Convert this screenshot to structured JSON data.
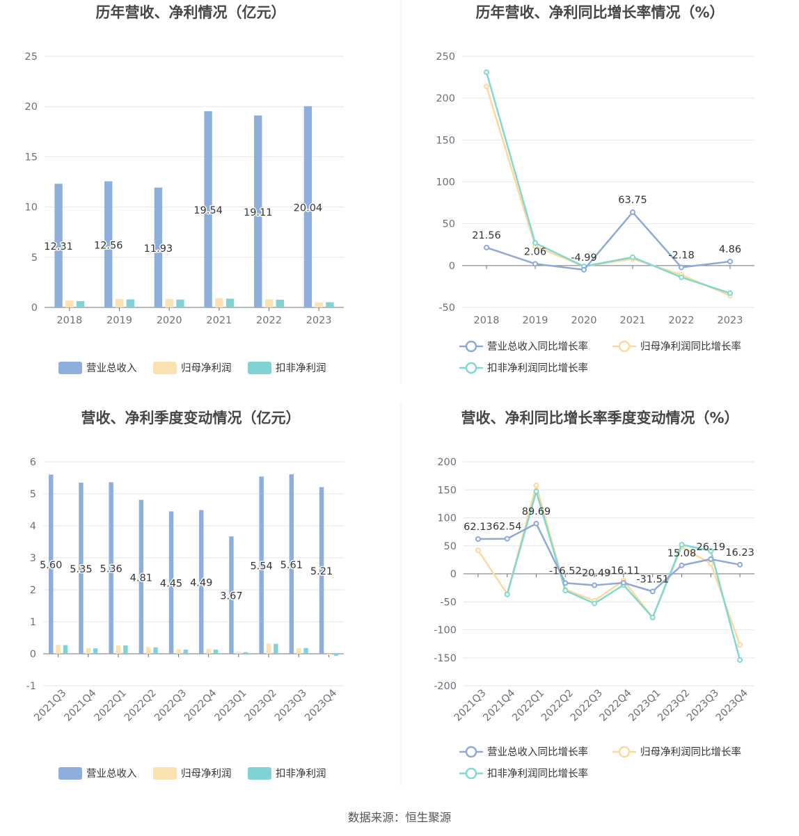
{
  "colors": {
    "revenue": "#8eaedc",
    "net_profit": "#fde2b1",
    "deducted_profit": "#7fd3d3",
    "revenue_line": "#8ea9d8",
    "net_profit_line": "#fed89c",
    "deducted_profit_line": "#80d8d2",
    "grid": "#e3e6ee",
    "axis": "#6e7079",
    "title": "#464646"
  },
  "source_text": "数据来源：恒生聚源",
  "chart_data": [
    {
      "id": "annual-revenue-profit",
      "type": "bar",
      "title": "历年营收、净利情况（亿元）",
      "categories": [
        "2018",
        "2019",
        "2020",
        "2021",
        "2022",
        "2023"
      ],
      "series": [
        {
          "name": "营业总收入",
          "values": [
            12.31,
            12.56,
            11.93,
            19.54,
            19.11,
            20.04
          ]
        },
        {
          "name": "归母净利润",
          "values": [
            0.68,
            0.84,
            0.84,
            0.91,
            0.81,
            0.51
          ]
        },
        {
          "name": "扣非净利润",
          "values": [
            0.63,
            0.8,
            0.78,
            0.87,
            0.77,
            0.52
          ]
        }
      ],
      "data_labels": [
        "12.31",
        "12.56",
        "11.93",
        "19.54",
        "19.11",
        "20.04"
      ],
      "ylim": [
        0,
        25
      ],
      "yticks": [
        0,
        5,
        10,
        15,
        20,
        25
      ]
    },
    {
      "id": "annual-growth-rate",
      "type": "line",
      "title": "历年营收、净利同比增长率情况（%）",
      "categories": [
        "2018",
        "2019",
        "2020",
        "2021",
        "2022",
        "2023"
      ],
      "series": [
        {
          "name": "营业总收入同比增长率",
          "values": [
            21.56,
            2.06,
            -4.99,
            63.75,
            -2.18,
            4.86
          ]
        },
        {
          "name": "归母净利润同比增长率",
          "values": [
            214,
            23,
            -1,
            8,
            -11,
            -36
          ]
        },
        {
          "name": "扣非净利润同比增长率",
          "values": [
            231,
            27,
            -1,
            10,
            -14,
            -33
          ]
        }
      ],
      "data_labels": [
        "21.56",
        "2.06",
        "-4.99",
        "63.75",
        "-2.18",
        "4.86"
      ],
      "ylim": [
        -50,
        250
      ],
      "yticks": [
        -50,
        0,
        50,
        100,
        150,
        200,
        250
      ]
    },
    {
      "id": "quarterly-revenue-profit",
      "type": "bar",
      "title": "营收、净利季度变动情况（亿元）",
      "categories": [
        "2021Q3",
        "2021Q4",
        "2022Q1",
        "2022Q2",
        "2022Q3",
        "2022Q4",
        "2023Q1",
        "2023Q2",
        "2023Q3",
        "2023Q4"
      ],
      "series": [
        {
          "name": "营业总收入",
          "values": [
            5.6,
            5.35,
            5.36,
            4.81,
            4.45,
            4.49,
            3.67,
            5.54,
            5.61,
            5.21
          ]
        },
        {
          "name": "归母净利润",
          "values": [
            0.28,
            0.18,
            0.26,
            0.21,
            0.14,
            0.15,
            0.06,
            0.32,
            0.17,
            -0.03
          ]
        },
        {
          "name": "扣非净利润",
          "values": [
            0.27,
            0.17,
            0.26,
            0.2,
            0.13,
            0.13,
            0.05,
            0.31,
            0.18,
            -0.06
          ]
        }
      ],
      "data_labels": [
        "5.60",
        "5.35",
        "5.36",
        "4.81",
        "4.45",
        "4.49",
        "3.67",
        "5.54",
        "5.61",
        "5.21"
      ],
      "ylim": [
        -1,
        6
      ],
      "yticks": [
        -1,
        0,
        1,
        2,
        3,
        4,
        5,
        6
      ]
    },
    {
      "id": "quarterly-growth-rate",
      "type": "line",
      "title": "营收、净利同比增长率季度变动情况（%）",
      "categories": [
        "2021Q3",
        "2021Q4",
        "2022Q1",
        "2022Q2",
        "2022Q3",
        "2022Q4",
        "2023Q1",
        "2023Q2",
        "2023Q3",
        "2023Q4"
      ],
      "series": [
        {
          "name": "营业总收入同比增长率",
          "values": [
            62.13,
            62.54,
            89.69,
            -16.52,
            -20.49,
            -16.11,
            -31.51,
            15.08,
            26.19,
            16.23
          ]
        },
        {
          "name": "归母净利润同比增长率",
          "values": [
            42,
            -36,
            158,
            -28,
            -48,
            -12,
            -78,
            48,
            18,
            -127
          ]
        },
        {
          "name": "扣非净利润同比增长率",
          "values": [
            null,
            -37,
            147,
            -30,
            -53,
            -20,
            -78,
            52,
            41,
            -154
          ]
        }
      ],
      "data_labels": [
        "62.13",
        "62.54",
        "89.69",
        "-16.52",
        "-20.49",
        "-16.11",
        "-31.51",
        "15.08",
        "26.19",
        "16.23"
      ],
      "ylim": [
        -200,
        200
      ],
      "yticks": [
        -200,
        -150,
        -100,
        -50,
        0,
        50,
        100,
        150,
        200
      ]
    }
  ]
}
